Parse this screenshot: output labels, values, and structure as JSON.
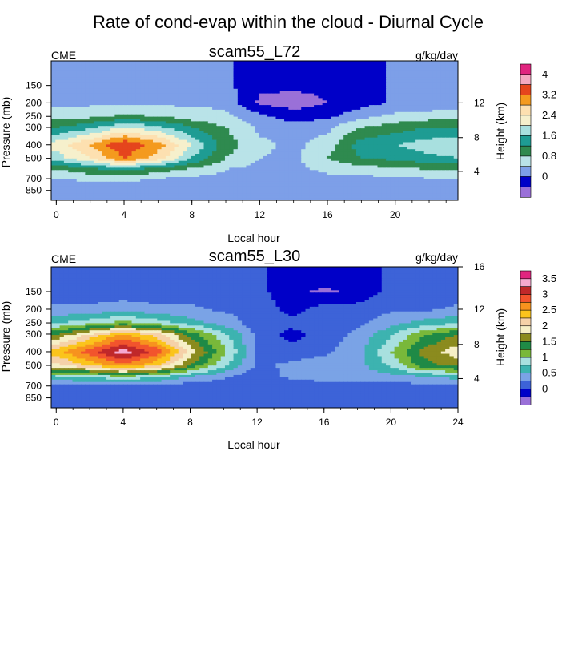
{
  "figure": {
    "title": "Rate of cond-evap within the cloud - Diurnal Cycle"
  },
  "chart_data": [
    {
      "type": "heatmap",
      "title": "scam55_L72",
      "left_label": "CME",
      "units_label": "g/kg/day",
      "xlabel": "Local hour",
      "ylabel": "Pressure (mb)",
      "ylabel_right": "Height (km)",
      "x_ticks": [
        "0",
        "4",
        "8",
        "12",
        "16",
        "20"
      ],
      "x_tick_values": [
        0,
        4,
        8,
        12,
        16,
        20
      ],
      "xlim": [
        -0.3,
        23.7
      ],
      "y_ticks": [
        "150",
        "200",
        "250",
        "300",
        "400",
        "500",
        "700",
        "850"
      ],
      "y_tick_values": [
        150,
        200,
        250,
        300,
        400,
        500,
        700,
        850
      ],
      "ylim": [
        100,
        1000
      ],
      "y_right_ticks": [
        "4",
        "8",
        "12"
      ],
      "y_right_tick_values": [
        4,
        8,
        12
      ],
      "y_right_tick_pressures": [
        620,
        355,
        200
      ],
      "colorbar_labels": [
        "4",
        "3.2",
        "2.4",
        "1.6",
        "0.8",
        "0"
      ],
      "colorbar_levels": [
        4,
        3.6,
        3.2,
        2.8,
        2.4,
        2.0,
        1.6,
        1.2,
        0.8,
        0.4,
        0,
        -0.4
      ],
      "colorbar_colors": [
        "#e0257f",
        "#f4a9c1",
        "#e5451d",
        "#f49a1e",
        "#fde0b0",
        "#f6f0cc",
        "#a8e0df",
        "#1e9c93",
        "#2f8a4f",
        "#b9e3e8",
        "#7d9fe8",
        "#0000c8",
        "#9a70d8"
      ],
      "grid": "off",
      "field": {
        "x": [
          0,
          2,
          4,
          6,
          8,
          10,
          12,
          14,
          16,
          18,
          20,
          22,
          24
        ],
        "p": [
          100,
          150,
          200,
          250,
          300,
          400,
          500,
          600,
          700,
          850,
          1000
        ],
        "values": [
          [
            0,
            0,
            0,
            0,
            0,
            0,
            0,
            0,
            0,
            0,
            0,
            0,
            0
          ],
          [
            0.1,
            0.1,
            0.1,
            0.1,
            0.1,
            0.1,
            -0.3,
            -0.3,
            -0.3,
            -0.2,
            0.1,
            0.1,
            0.1
          ],
          [
            0.3,
            0.3,
            0.3,
            0.3,
            0.3,
            0.3,
            -0.5,
            -0.6,
            -0.4,
            -0.2,
            0.1,
            0.1,
            0.2
          ],
          [
            0.6,
            0.7,
            0.9,
            0.8,
            0.6,
            0.5,
            0.1,
            -0.2,
            -0.1,
            0.3,
            0.5,
            0.6,
            0.6
          ],
          [
            1.2,
            1.5,
            2.0,
            1.7,
            1.2,
            0.8,
            0.3,
            0.2,
            0.3,
            0.8,
            1.0,
            1.2,
            1.2
          ],
          [
            2.2,
            2.8,
            3.6,
            3.0,
            2.0,
            1.0,
            0.5,
            0.3,
            0.6,
            1.4,
            1.6,
            1.8,
            2.0
          ],
          [
            1.8,
            2.4,
            3.2,
            2.6,
            1.6,
            0.8,
            0.4,
            0.3,
            0.8,
            1.2,
            1.3,
            1.5,
            1.6
          ],
          [
            0.8,
            1.1,
            1.3,
            1.0,
            0.7,
            0.4,
            0.3,
            0.3,
            0.5,
            0.6,
            0.7,
            0.8,
            0.8
          ],
          [
            0.4,
            0.5,
            0.5,
            0.4,
            0.3,
            0.3,
            0.2,
            0.2,
            0.3,
            0.3,
            0.3,
            0.4,
            0.4
          ],
          [
            0.1,
            0.1,
            0.1,
            0.1,
            0.1,
            0.1,
            0.1,
            0.1,
            0.1,
            0.1,
            0.1,
            0.1,
            0.1
          ],
          [
            0,
            0,
            0,
            0,
            0,
            0,
            0,
            0,
            0,
            0,
            0,
            0,
            0
          ]
        ]
      }
    },
    {
      "type": "heatmap",
      "title": "scam55_L30",
      "left_label": "CME",
      "units_label": "g/kg/day",
      "xlabel": "Local hour",
      "ylabel": "Pressure (mb)",
      "ylabel_right": "Height (km)",
      "x_ticks": [
        "0",
        "4",
        "8",
        "12",
        "16",
        "20",
        "24"
      ],
      "x_tick_values": [
        0,
        4,
        8,
        12,
        16,
        20,
        24
      ],
      "xlim": [
        -0.3,
        24
      ],
      "y_ticks": [
        "150",
        "200",
        "250",
        "300",
        "400",
        "500",
        "700",
        "850"
      ],
      "y_tick_values": [
        150,
        200,
        250,
        300,
        400,
        500,
        700,
        850
      ],
      "ylim": [
        100,
        1000
      ],
      "y_right_ticks": [
        "4",
        "8",
        "12",
        "16"
      ],
      "y_right_tick_values": [
        4,
        8,
        12,
        16
      ],
      "y_right_tick_pressures": [
        620,
        355,
        200,
        100
      ],
      "colorbar_labels": [
        "3.5",
        "3",
        "2.5",
        "2",
        "1.5",
        "1",
        "0.5",
        "0"
      ],
      "colorbar_levels": [
        3.5,
        3.25,
        3,
        2.75,
        2.5,
        2.25,
        2,
        1.75,
        1.5,
        1.25,
        1,
        0.75,
        0.5,
        0.25,
        0,
        -0.25
      ],
      "colorbar_colors": [
        "#e0257f",
        "#f6a9d0",
        "#c0282a",
        "#f2542d",
        "#f7931e",
        "#fbc41c",
        "#f5d1a8",
        "#f6efc6",
        "#8b8b1e",
        "#1f8a46",
        "#79b83a",
        "#a8e0df",
        "#3db3b0",
        "#7aa3e6",
        "#3d63d8",
        "#0000c8",
        "#9a70d8"
      ],
      "grid": "off",
      "field": {
        "x": [
          0,
          2,
          4,
          6,
          8,
          10,
          12,
          14,
          16,
          18,
          20,
          22,
          24
        ],
        "p": [
          100,
          150,
          200,
          250,
          300,
          400,
          500,
          600,
          700,
          850,
          1000
        ],
        "values": [
          [
            0,
            0,
            0,
            0,
            0,
            0,
            0,
            0,
            0,
            0,
            0,
            0,
            0
          ],
          [
            0.1,
            0.1,
            0.1,
            0.1,
            0.1,
            0.1,
            0.1,
            -0.2,
            -0.3,
            -0.2,
            0.1,
            0.1,
            0.1
          ],
          [
            0.3,
            0.3,
            0.4,
            0.3,
            0.3,
            0.2,
            0.2,
            -0.1,
            0.1,
            0.1,
            0.2,
            0.2,
            0.3
          ],
          [
            0.7,
            0.9,
            1.1,
            0.9,
            0.6,
            0.4,
            0.1,
            0.1,
            0.1,
            0.2,
            0.4,
            0.6,
            0.7
          ],
          [
            1.5,
            2.0,
            2.5,
            2.1,
            1.4,
            0.8,
            0.2,
            -0.1,
            0.1,
            0.3,
            0.7,
            1.2,
            1.5
          ],
          [
            2.4,
            2.9,
            3.4,
            2.9,
            1.9,
            1.1,
            0.2,
            0.1,
            0.2,
            0.4,
            1.0,
            1.6,
            1.9
          ],
          [
            1.9,
            2.3,
            2.7,
            2.3,
            1.5,
            0.8,
            0.2,
            0.3,
            0.4,
            0.4,
            0.8,
            1.4,
            1.6
          ],
          [
            0.7,
            0.8,
            1.0,
            0.8,
            0.5,
            0.3,
            0.1,
            0.3,
            0.4,
            0.4,
            0.4,
            0.5,
            0.6
          ],
          [
            0.2,
            0.2,
            0.2,
            0.2,
            0.1,
            0.1,
            0.1,
            0.1,
            0.1,
            0.1,
            0.1,
            0.2,
            0.2
          ],
          [
            0,
            0,
            0,
            0,
            0,
            0,
            0,
            0,
            0,
            0,
            0,
            0,
            0
          ],
          [
            0,
            0,
            0,
            0,
            0,
            0,
            0,
            0,
            0,
            0,
            0,
            0,
            0
          ]
        ]
      }
    }
  ]
}
